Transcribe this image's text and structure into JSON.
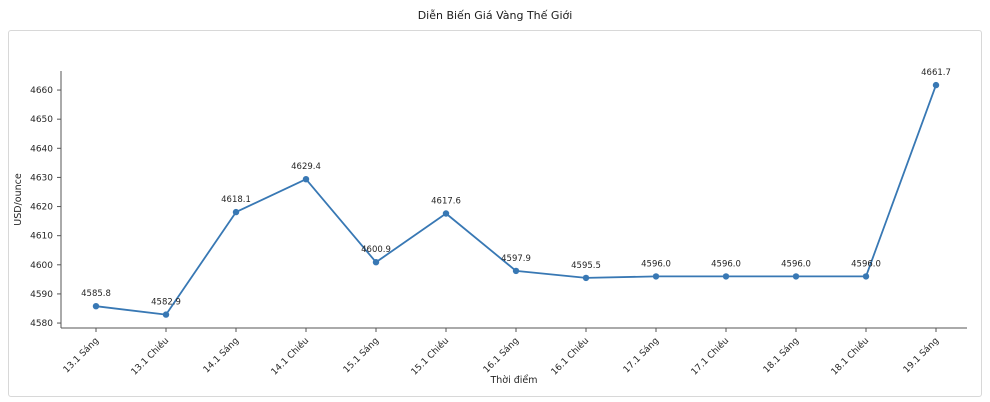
{
  "chart_data": {
    "type": "line",
    "title": "Diễn Biến Giá Vàng Thế Giới",
    "xlabel": "Thời điểm",
    "ylabel": "USD/ounce",
    "categories": [
      "13.1 Sáng",
      "13.1 Chiều",
      "14.1 Sáng",
      "14.1 Chiều",
      "15.1 Sáng",
      "15.1 Chiều",
      "16.1 Sáng",
      "16.1 Chiều",
      "17.1 Sáng",
      "17.1 Chiều",
      "18.1 Sáng",
      "18.1 Chiều",
      "19.1 Sáng"
    ],
    "values": [
      4585.8,
      4582.9,
      4618.1,
      4629.4,
      4600.9,
      4617.6,
      4597.9,
      4595.5,
      4596.0,
      4596.0,
      4596.0,
      4596.0,
      4661.7
    ],
    "yticks": [
      4580,
      4590,
      4600,
      4610,
      4620,
      4630,
      4640,
      4650,
      4660
    ],
    "ylim": [
      4578,
      4666
    ],
    "line_color": "#3878b4",
    "marker": "circle",
    "data_labels": true,
    "grid": false,
    "legend_position": "none",
    "text_color": "#262626",
    "axis_color": "#555555"
  }
}
